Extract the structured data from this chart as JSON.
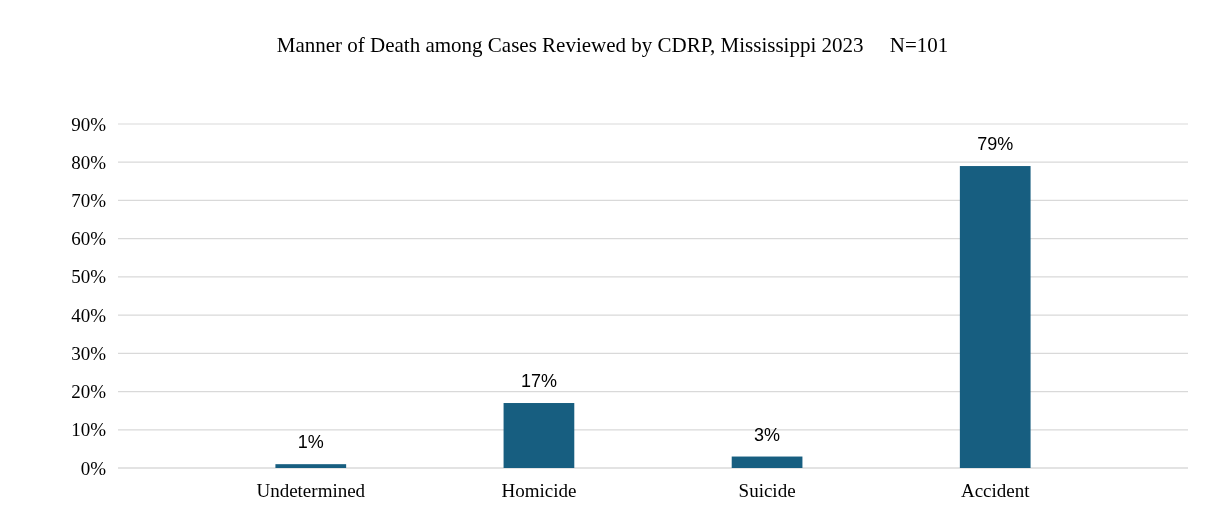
{
  "chart_data": {
    "type": "bar",
    "title": "Manner of Death among Cases Reviewed by CDRP, Mississippi 2023     N=101",
    "categories": [
      "Undetermined",
      "Homicide",
      "Suicide",
      "Accident"
    ],
    "values": [
      1,
      17,
      3,
      79
    ],
    "color": "#175e80",
    "value_labels": [
      "1%",
      "17%",
      "3%",
      "79%"
    ],
    "ylim": [
      0,
      90
    ],
    "yticks": [
      {
        "value": 0,
        "label": "0%"
      },
      {
        "value": 10,
        "label": "10%"
      },
      {
        "value": 20,
        "label": "20%"
      },
      {
        "value": 30,
        "label": "30%"
      },
      {
        "value": 40,
        "label": "40%"
      },
      {
        "value": 50,
        "label": "50%"
      },
      {
        "value": 60,
        "label": "60%"
      },
      {
        "value": 70,
        "label": "70%"
      },
      {
        "value": 80,
        "label": "80%"
      },
      {
        "value": 90,
        "label": "90%"
      }
    ],
    "grid": "y"
  }
}
